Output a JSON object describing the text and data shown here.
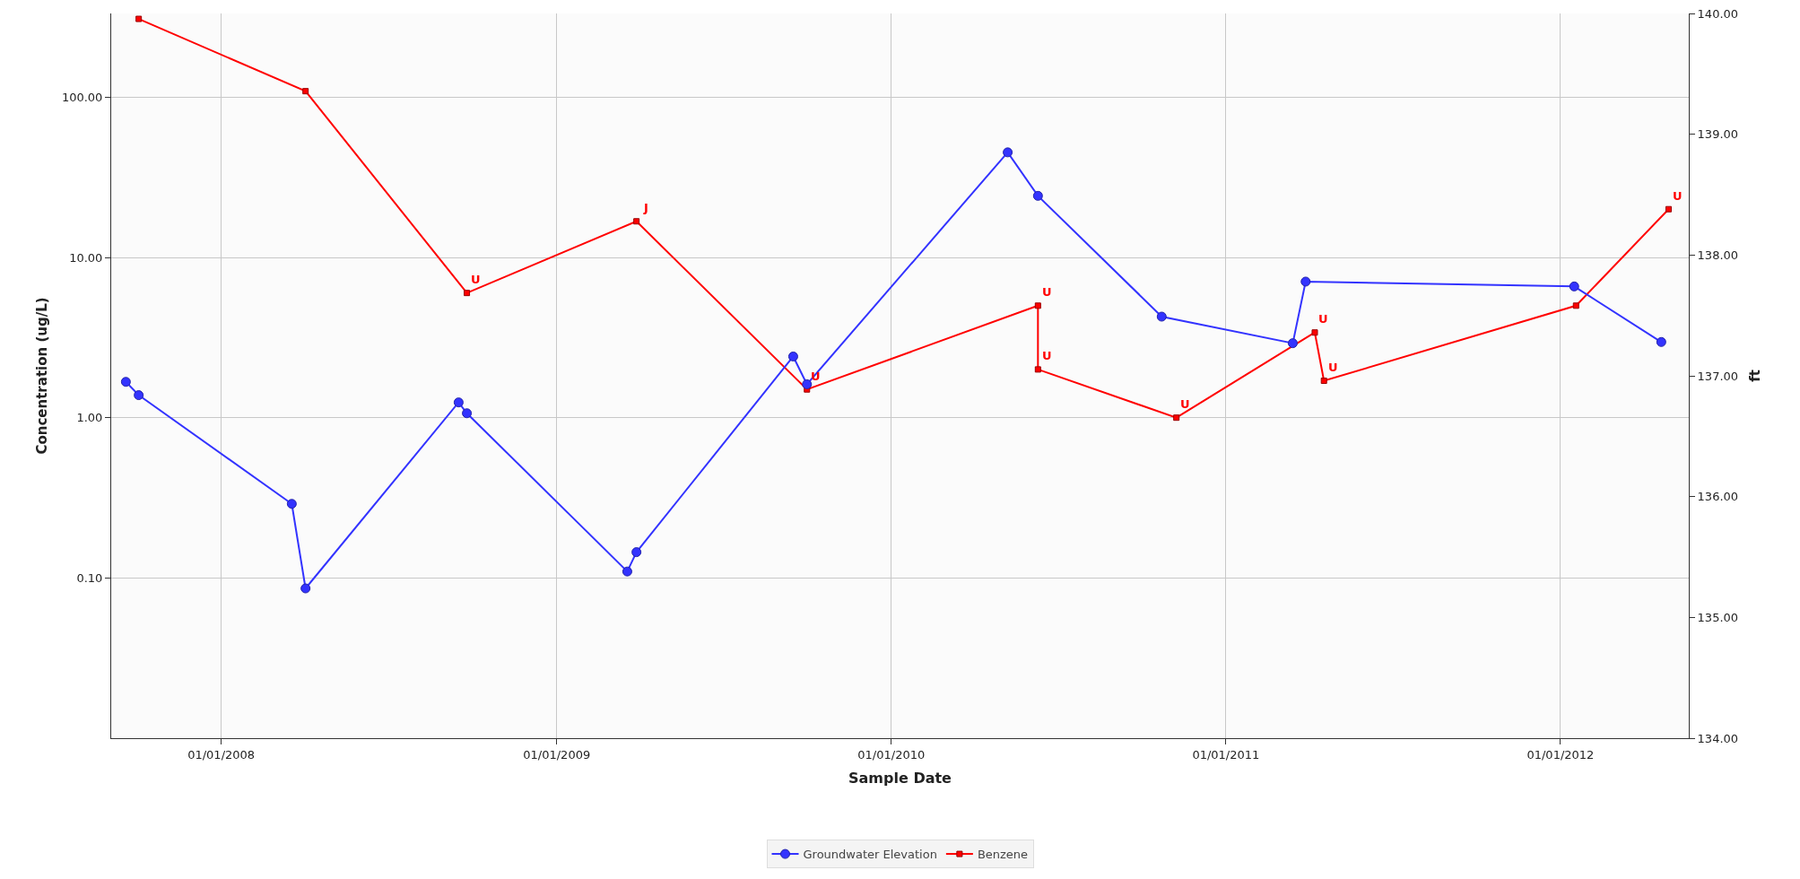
{
  "chart_data": {
    "type": "line",
    "xlabel": "Sample Date",
    "ylabel": "Concentration (ug/L)",
    "y2label": "ft",
    "xlim": [
      "2007-09-03",
      "2012-05-20"
    ],
    "xticks": [
      {
        "value": "2008-01-01",
        "label": "01/01/2008"
      },
      {
        "value": "2009-01-01",
        "label": "01/01/2009"
      },
      {
        "value": "2010-01-01",
        "label": "01/01/2010"
      },
      {
        "value": "2011-01-01",
        "label": "01/01/2011"
      },
      {
        "value": "2012-01-01",
        "label": "01/01/2012"
      }
    ],
    "ylim": [
      0.01,
      333
    ],
    "log": "y",
    "yticks": [
      {
        "value": 0.1,
        "label": "0.10"
      },
      {
        "value": 1,
        "label": "1.00"
      },
      {
        "value": 10,
        "label": "10.00"
      },
      {
        "value": 100,
        "label": "100.00"
      }
    ],
    "y2lim": [
      134,
      140
    ],
    "y2ticks": [
      {
        "value": 134,
        "label": "134.00"
      },
      {
        "value": 135,
        "label": "135.00"
      },
      {
        "value": 136,
        "label": "136.00"
      },
      {
        "value": 137,
        "label": "137.00"
      },
      {
        "value": 138,
        "label": "138.00"
      },
      {
        "value": 139,
        "label": "139.00"
      },
      {
        "value": 140,
        "label": "140.00"
      }
    ],
    "grid": true,
    "legend": "bottom",
    "series": [
      {
        "name": "Groundwater Elevation",
        "color": "#3333ff",
        "axis": "y2",
        "marker": "circle",
        "x": [
          "2007-09-19",
          "2007-10-03",
          "2008-03-18",
          "2008-04-02",
          "2008-09-16",
          "2008-09-25",
          "2009-03-19",
          "2009-03-29",
          "2009-09-16",
          "2009-10-01",
          "2010-05-08",
          "2010-06-10",
          "2010-10-23",
          "2011-03-15",
          "2011-03-29",
          "2012-01-16",
          "2012-04-20"
        ],
        "values": [
          136.95,
          136.84,
          135.94,
          135.24,
          136.78,
          136.69,
          135.38,
          135.54,
          137.16,
          136.93,
          138.85,
          138.49,
          137.49,
          137.27,
          137.78,
          137.74,
          137.28
        ]
      },
      {
        "name": "Benzene",
        "color": "#ff0000",
        "marker": "square",
        "x": [
          "2007-10-03",
          "2008-04-02",
          "2008-09-25",
          "2009-03-29",
          "2009-10-01",
          "2010-06-10",
          "2010-06-10",
          "2010-11-08",
          "2011-04-08",
          "2011-04-18",
          "2012-01-18",
          "2012-04-28"
        ],
        "values": [
          308,
          109,
          6.0,
          16.8,
          1.5,
          5.0,
          2.0,
          1.0,
          3.4,
          1.7,
          5.0,
          20
        ]
      }
    ],
    "annotations": [
      {
        "text": "U",
        "x": "2008-09-25",
        "y": 6.0
      },
      {
        "text": "J",
        "x": "2009-03-29",
        "y": 16.8
      },
      {
        "text": "U",
        "x": "2009-10-01",
        "y": 1.5
      },
      {
        "text": "U",
        "x": "2010-06-10",
        "y": 5.0
      },
      {
        "text": "U",
        "x": "2010-06-10",
        "y": 2.0
      },
      {
        "text": "U",
        "x": "2010-11-08",
        "y": 1.0
      },
      {
        "text": "U",
        "x": "2011-04-08",
        "y": 3.4
      },
      {
        "text": "U",
        "x": "2011-04-18",
        "y": 1.7
      },
      {
        "text": "U",
        "x": "2012-04-28",
        "y": 20
      }
    ]
  }
}
